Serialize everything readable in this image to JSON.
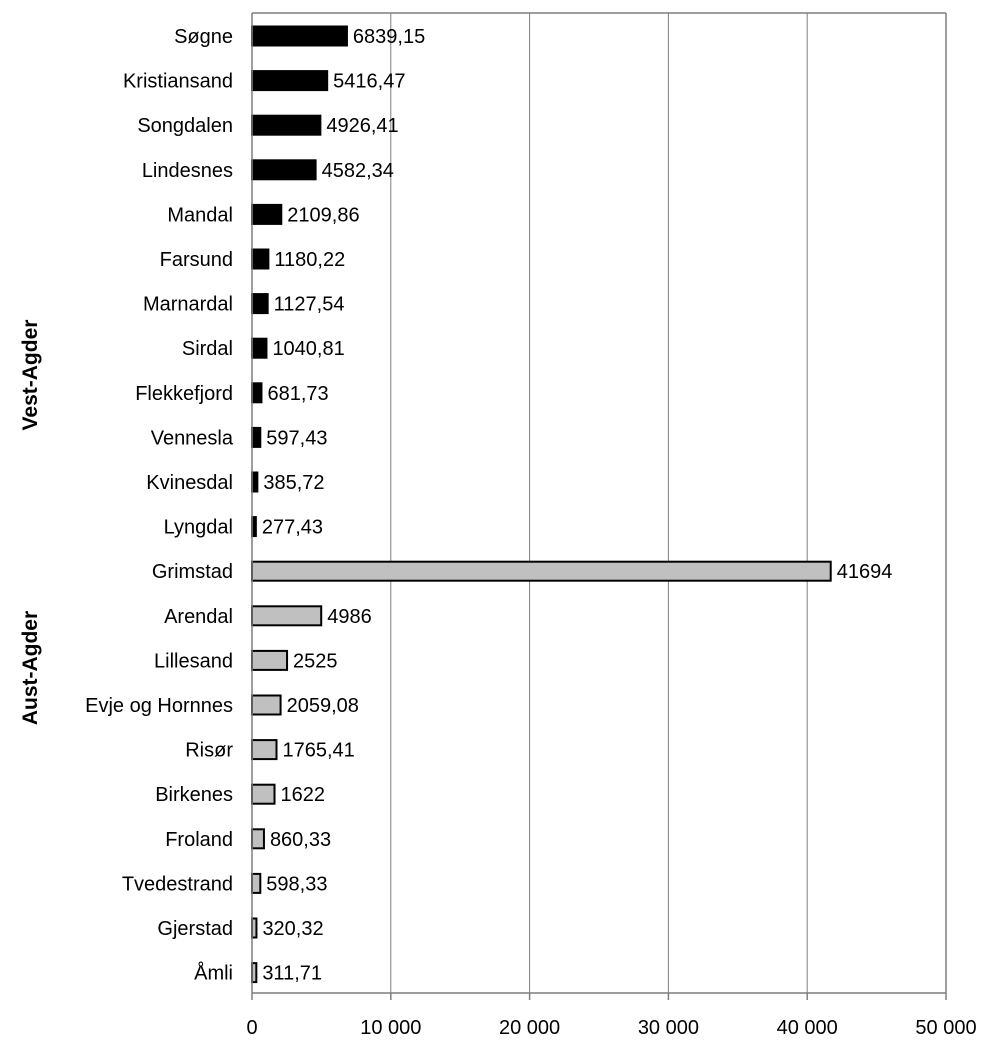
{
  "chart_data": {
    "type": "bar",
    "orientation": "horizontal",
    "xlim": [
      0,
      50000
    ],
    "x_ticks": [
      0,
      10000,
      20000,
      30000,
      40000,
      50000
    ],
    "x_tick_labels": [
      "0",
      "10 000",
      "20 000",
      "30 000",
      "40 000",
      "50 000"
    ],
    "grid": "vertical",
    "groups": [
      {
        "name": "Vest-Agder",
        "color": "#000000",
        "categories": [
          "Søgne",
          "Kristiansand",
          "Songdalen",
          "Lindesnes",
          "Mandal",
          "Farsund",
          "Marnardal",
          "Sirdal",
          "Flekkefjord",
          "Vennesla",
          "Kvinesdal",
          "Lyngdal"
        ],
        "values": [
          6839.15,
          5416.47,
          4926.41,
          4582.34,
          2109.86,
          1180.22,
          1127.54,
          1040.81,
          681.73,
          597.43,
          385.72,
          277.43
        ],
        "value_labels": [
          "6839,15",
          "5416,47",
          "4926,41",
          "4582,34",
          "2109,86",
          "1180,22",
          "1127,54",
          "1040,81",
          "681,73",
          "597,43",
          "385,72",
          "277,43"
        ]
      },
      {
        "name": "Aust-Agder",
        "color": "#c0c0c0",
        "categories": [
          "Grimstad",
          "Arendal",
          "Lillesand",
          "Evje og Hornnes",
          "Risør",
          "Birkenes",
          "Froland",
          "Tvedestrand",
          "Gjerstad",
          "Åmli"
        ],
        "values": [
          41694,
          4986,
          2525,
          2059.08,
          1765.41,
          1622,
          860.33,
          598.33,
          320.32,
          311.71
        ],
        "value_labels": [
          "41694",
          "4986",
          "2525",
          "2059,08",
          "1765,41",
          "1622",
          "860,33",
          "598,33",
          "320,32",
          "311,71"
        ]
      }
    ]
  }
}
